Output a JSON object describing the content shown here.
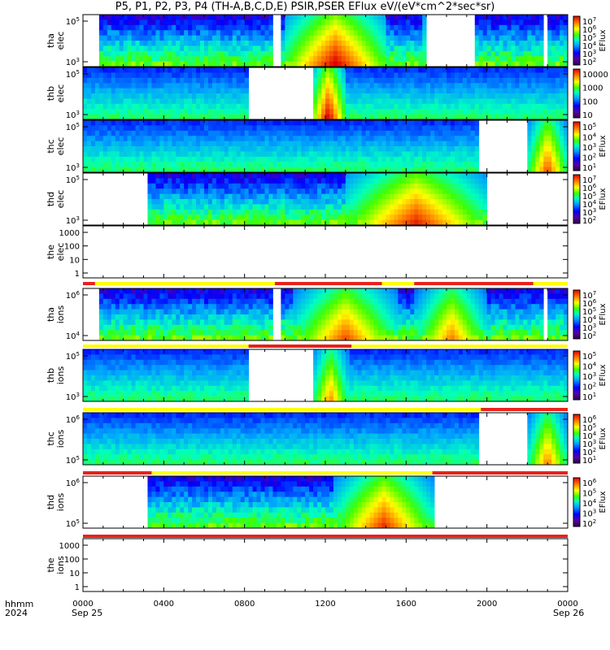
{
  "title": "P5, P1, P2, P3, P4 (TH-A,B,C,D,E) PSIR,PSER EFlux eV/(eV*cm^2*sec*sr)",
  "footer": {
    "time_label": "hhmm",
    "year": "2024",
    "start_date": "Sep 25",
    "end_date": "Sep 26"
  },
  "x_axis": {
    "ticks": [
      "0000",
      "0400",
      "0800",
      "1200",
      "1600",
      "2000",
      "0000"
    ]
  },
  "colors": {
    "data_bar_red": "#e8221b",
    "data_bar_yellow": "#ffff00"
  },
  "chart_data": [
    {
      "type": "heatmap",
      "name": "tha-elec",
      "ylabel": [
        "tha",
        "elec"
      ],
      "y_scale": "log",
      "y_ticks": [
        "10^5",
        "10^3"
      ],
      "colorbar_label": "EFlux",
      "colorbar_ticks": [
        "10^7",
        "10^6",
        "10^5",
        "10^4",
        "10^3",
        "10^2"
      ],
      "coverage_hours": [
        [
          0.8,
          22.8
        ],
        [
          23.1,
          24
        ]
      ],
      "gaps": [
        [
          9.5,
          9.7
        ],
        [
          17.1,
          19.4
        ]
      ]
    },
    {
      "type": "heatmap",
      "name": "thb-elec",
      "ylabel": [
        "thb",
        "elec"
      ],
      "y_scale": "log",
      "y_ticks": [
        "10^5",
        "10^3"
      ],
      "colorbar_label": "",
      "colorbar_ticks": [
        "10000",
        "1000",
        "100",
        "10"
      ],
      "coverage_hours": [
        [
          0,
          8.2
        ],
        [
          11.3,
          24
        ]
      ],
      "gaps": [
        [
          8.2,
          11.3
        ]
      ]
    },
    {
      "type": "heatmap",
      "name": "thc-elec",
      "ylabel": [
        "thc",
        "elec"
      ],
      "y_scale": "log",
      "y_ticks": [
        "10^5",
        "10^3"
      ],
      "colorbar_label": "EFlux",
      "colorbar_ticks": [
        "10^5",
        "10^4",
        "10^3",
        "10^2",
        "10^1"
      ],
      "coverage_hours": [
        [
          0,
          19.7
        ],
        [
          22.0,
          24
        ]
      ],
      "gaps": [
        [
          19.7,
          22.0
        ]
      ]
    },
    {
      "type": "heatmap",
      "name": "thd-elec",
      "ylabel": [
        "thd",
        "elec"
      ],
      "y_scale": "log",
      "y_ticks": [
        "10^5",
        "10^3"
      ],
      "colorbar_label": "EFlux",
      "colorbar_ticks": [
        "10^7",
        "10^6",
        "10^5",
        "10^4",
        "10^3",
        "10^2"
      ],
      "coverage_hours": [
        [
          3.3,
          20.0
        ]
      ],
      "gaps": []
    },
    {
      "type": "heatmap",
      "name": "the-elec",
      "ylabel": [
        "the",
        "elec"
      ],
      "y_scale": "log",
      "y_ticks": [
        "1000",
        "100",
        "10",
        "1"
      ],
      "colorbar_label": "",
      "colorbar_ticks": [],
      "coverage_hours": [],
      "gaps": []
    },
    {
      "type": "heatmap",
      "name": "tha-ions",
      "ylabel": [
        "tha",
        "ions"
      ],
      "y_scale": "log",
      "y_ticks": [
        "10^6",
        "10^4"
      ],
      "colorbar_label": "EFlux",
      "colorbar_ticks": [
        "10^7",
        "10^6",
        "10^5",
        "10^4",
        "10^3",
        "10^2"
      ],
      "coverage_hours": [
        [
          0.8,
          22.8
        ],
        [
          23.1,
          24
        ]
      ],
      "gaps": [
        [
          9.5,
          9.7
        ]
      ]
    },
    {
      "type": "heatmap",
      "name": "thb-ions",
      "ylabel": [
        "thb",
        "ions"
      ],
      "y_scale": "log",
      "y_ticks": [
        "10^5",
        "10^3"
      ],
      "colorbar_label": "EFlux",
      "colorbar_ticks": [
        "10^5",
        "10^4",
        "10^3",
        "10^2",
        "10^1"
      ],
      "coverage_hours": [
        [
          0,
          8.2
        ],
        [
          11.3,
          24
        ]
      ],
      "gaps": [
        [
          8.2,
          11.3
        ]
      ]
    },
    {
      "type": "heatmap",
      "name": "thc-ions",
      "ylabel": [
        "thc",
        "ions"
      ],
      "y_scale": "log",
      "y_ticks": [
        "10^6",
        "10^5"
      ],
      "colorbar_label": "EFlux",
      "colorbar_ticks": [
        "10^6",
        "10^5",
        "10^4",
        "10^3",
        "10^2",
        "10^1"
      ],
      "coverage_hours": [
        [
          0,
          19.7
        ],
        [
          22.0,
          24
        ]
      ],
      "gaps": [
        [
          19.7,
          22.0
        ]
      ]
    },
    {
      "type": "heatmap",
      "name": "thd-ions",
      "ylabel": [
        "thd",
        "ions"
      ],
      "y_scale": "log",
      "y_ticks": [
        "10^6",
        "10^5"
      ],
      "colorbar_label": "EFlux",
      "colorbar_ticks": [
        "10^6",
        "10^5",
        "10^4",
        "10^3",
        "10^2"
      ],
      "coverage_hours": [
        [
          3.3,
          17.3
        ]
      ],
      "gaps": []
    },
    {
      "type": "heatmap",
      "name": "the-ions",
      "ylabel": [
        "the",
        "ions"
      ],
      "y_scale": "log",
      "y_ticks": [
        "1000",
        "100",
        "10",
        "1"
      ],
      "colorbar_label": "",
      "colorbar_ticks": [],
      "coverage_hours": [],
      "gaps": []
    }
  ],
  "mode_bars": [
    {
      "after": "the-elec",
      "segments": [
        [
          "red",
          0,
          0.6
        ],
        [
          "yellow",
          0.6,
          9.5
        ],
        [
          "red",
          9.5,
          14.8
        ],
        [
          "yellow",
          14.8,
          16.4
        ],
        [
          "red",
          16.4,
          22.3
        ],
        [
          "yellow",
          22.3,
          24
        ]
      ]
    },
    {
      "after": "tha-ions",
      "segments": [
        [
          "yellow",
          0,
          8.2
        ],
        [
          "red",
          8.2,
          13.3
        ],
        [
          "yellow",
          13.3,
          24
        ]
      ]
    },
    {
      "after": "thb-ions",
      "segments": [
        [
          "yellow",
          0,
          19.7
        ],
        [
          "red",
          19.7,
          24
        ]
      ]
    },
    {
      "after": "thc-ions",
      "segments": [
        [
          "red",
          0,
          3.4
        ],
        [
          "yellow",
          3.4,
          17.3
        ],
        [
          "red",
          17.3,
          24
        ]
      ]
    },
    {
      "after": "thd-ions",
      "segments": [
        [
          "red",
          0,
          24
        ]
      ]
    }
  ]
}
